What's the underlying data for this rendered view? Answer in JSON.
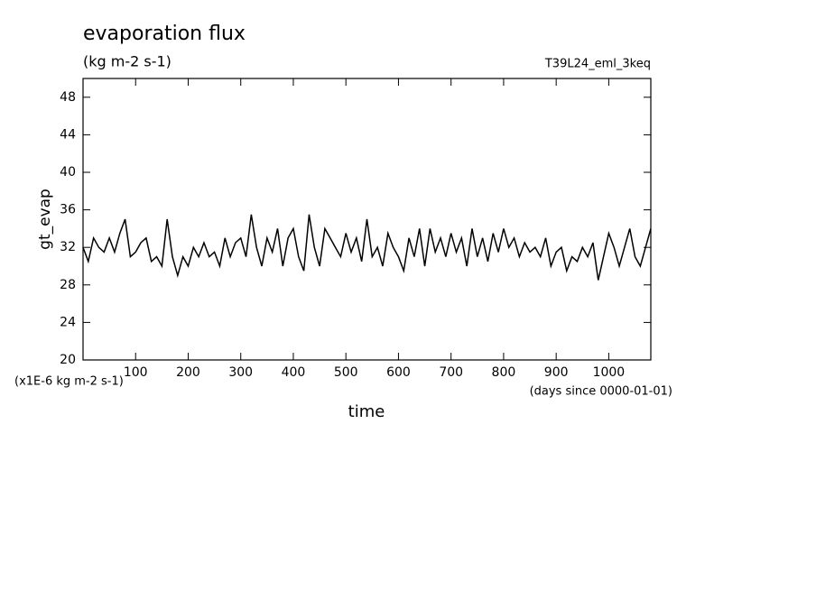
{
  "chart_data": {
    "type": "line",
    "title": "evaporation flux",
    "subtitle": "(kg m-2 s-1)",
    "annotation": "T39L24_eml_3keq",
    "y_label": "gt_evap",
    "x_label": "time",
    "y_unit": "(x1E-6 kg m-2 s-1)",
    "x_unit": "(days since 0000-01-01)",
    "xlim": [
      0,
      1080
    ],
    "ylim": [
      20,
      50
    ],
    "xticks": [
      100,
      200,
      300,
      400,
      500,
      600,
      700,
      800,
      900,
      1000
    ],
    "yticks": [
      20,
      24,
      28,
      32,
      36,
      40,
      44,
      48
    ],
    "color": "#000000",
    "x": [
      0,
      10,
      20,
      30,
      40,
      50,
      60,
      70,
      80,
      90,
      100,
      110,
      120,
      130,
      140,
      150,
      160,
      170,
      180,
      190,
      200,
      210,
      220,
      230,
      240,
      250,
      260,
      270,
      280,
      290,
      300,
      310,
      320,
      330,
      340,
      350,
      360,
      370,
      380,
      390,
      400,
      410,
      420,
      430,
      440,
      450,
      460,
      470,
      480,
      490,
      500,
      510,
      520,
      530,
      540,
      550,
      560,
      570,
      580,
      590,
      600,
      610,
      620,
      630,
      640,
      650,
      660,
      670,
      680,
      690,
      700,
      710,
      720,
      730,
      740,
      750,
      760,
      770,
      780,
      790,
      800,
      810,
      820,
      830,
      840,
      850,
      860,
      870,
      880,
      890,
      900,
      910,
      920,
      930,
      940,
      950,
      960,
      970,
      980,
      990,
      1000,
      1010,
      1020,
      1030,
      1040,
      1050,
      1060,
      1070,
      1080
    ],
    "values": [
      32,
      30.5,
      33,
      32,
      31.5,
      33,
      31.5,
      33.5,
      35,
      31,
      31.5,
      32.5,
      33,
      30.5,
      31,
      30,
      35,
      31,
      29,
      31,
      30,
      32,
      31,
      32.5,
      31,
      31.5,
      30,
      33,
      31,
      32.5,
      33,
      31,
      35.5,
      32,
      30,
      33,
      31.5,
      34,
      30,
      33,
      34,
      31,
      29.5,
      35.5,
      32,
      30,
      34,
      33,
      32,
      31,
      33.5,
      31.5,
      33,
      30.5,
      35,
      31,
      32,
      30,
      33.5,
      32,
      31,
      29.5,
      33,
      31,
      34,
      30,
      34,
      31.5,
      33,
      31,
      33.5,
      31.5,
      33,
      30,
      34,
      31,
      33,
      30.5,
      33.5,
      31.5,
      34,
      32,
      33,
      31,
      32.5,
      31.5,
      32,
      31,
      33,
      30,
      31.5,
      32,
      29.5,
      31,
      30.5,
      32,
      31,
      32.5,
      28.5,
      31,
      33.5,
      32,
      30,
      32,
      34,
      31,
      30,
      32,
      34
    ]
  }
}
